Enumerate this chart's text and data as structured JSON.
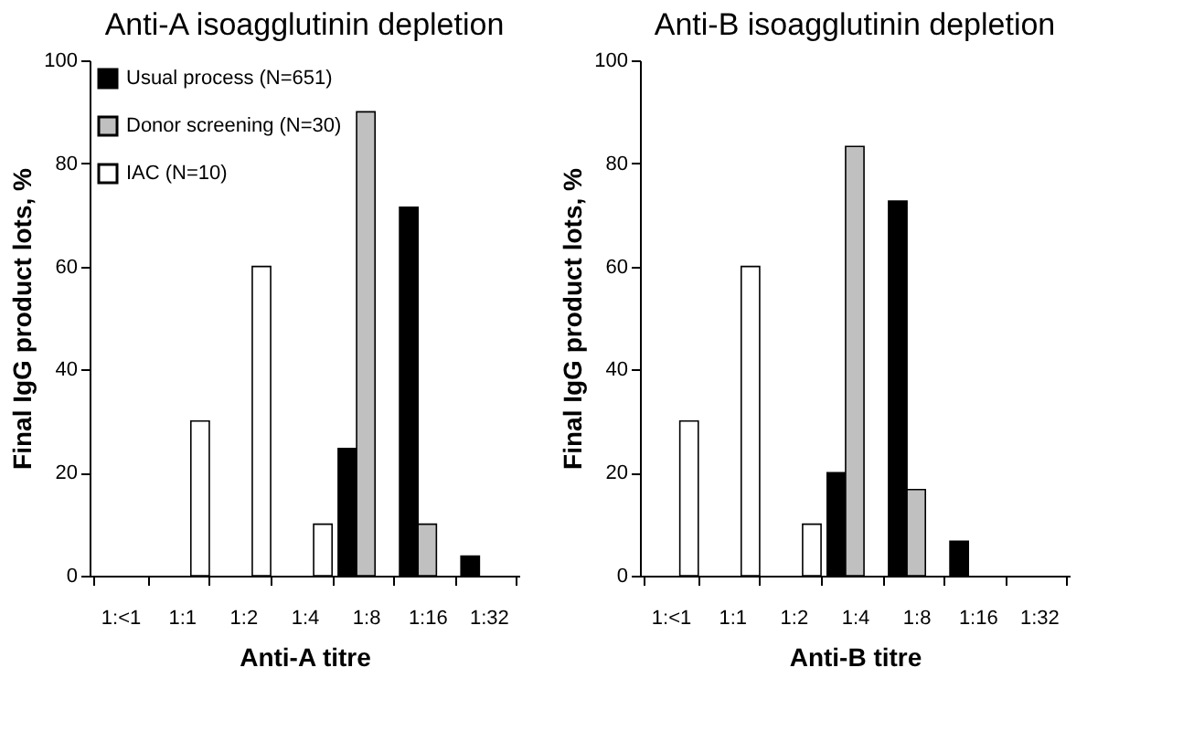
{
  "chart_data": [
    {
      "type": "bar",
      "title": "Anti-A isoagglutinin depletion",
      "xlabel": "Anti-A titre",
      "ylabel": "Final IgG product lots, %",
      "categories": [
        "1:<1",
        "1:1",
        "1:2",
        "1:4",
        "1:8",
        "1:16",
        "1:32"
      ],
      "series": [
        {
          "name": "Usual process (N=651)",
          "color": "#000000",
          "values": [
            null,
            null,
            null,
            null,
            24.7,
            71.5,
            3.8
          ]
        },
        {
          "name": "Donor screening (N=30)",
          "color": "#c0c0c0",
          "values": [
            null,
            null,
            null,
            null,
            90,
            10,
            null
          ]
        },
        {
          "name": "IAC (N=10)",
          "color": "#ffffff",
          "values": [
            null,
            30,
            60,
            10,
            null,
            null,
            null
          ]
        }
      ],
      "ylim": [
        0,
        100
      ],
      "yticks": [
        0,
        20,
        40,
        60,
        80,
        100
      ],
      "legend": "top left",
      "grid": false
    },
    {
      "type": "bar",
      "title": "Anti-B isoagglutinin depletion",
      "xlabel": "Anti-B titre",
      "ylabel": "Final IgG product lots, %",
      "categories": [
        "1:<1",
        "1:1",
        "1:2",
        "1:4",
        "1:8",
        "1:16",
        "1:32"
      ],
      "series": [
        {
          "name": "Usual process (N=651)",
          "color": "#000000",
          "values": [
            null,
            null,
            null,
            20,
            72.7,
            6.7,
            null
          ]
        },
        {
          "name": "Donor screening (N=30)",
          "color": "#c0c0c0",
          "values": [
            null,
            null,
            null,
            83.3,
            16.7,
            null,
            null
          ]
        },
        {
          "name": "IAC (N=10)",
          "color": "#ffffff",
          "values": [
            30,
            60,
            10,
            null,
            null,
            null,
            null
          ]
        }
      ],
      "ylim": [
        0,
        100
      ],
      "yticks": [
        0,
        20,
        40,
        60,
        80,
        100
      ],
      "legend": "top left",
      "grid": false
    }
  ]
}
